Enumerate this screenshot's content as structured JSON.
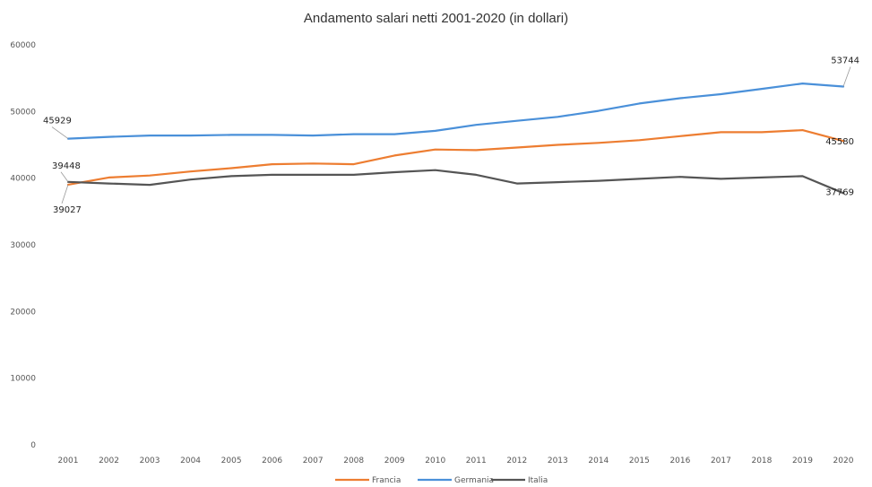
{
  "chart_data": {
    "type": "line",
    "title": "Andamento salari netti 2001-2020 (in dollari)",
    "xlabel": "",
    "ylabel": "",
    "ylim": [
      0,
      60000
    ],
    "yticks": [
      "0",
      "10000",
      "20000",
      "30000",
      "40000",
      "50000",
      "60000"
    ],
    "categories": [
      "2001",
      "2002",
      "2003",
      "2004",
      "2005",
      "2006",
      "2007",
      "2008",
      "2009",
      "2010",
      "2011",
      "2012",
      "2013",
      "2014",
      "2015",
      "2016",
      "2017",
      "2018",
      "2019",
      "2020"
    ],
    "grid": false,
    "legend_position": "bottom",
    "series": [
      {
        "name": "Francia",
        "color": "#ED7D31",
        "values": [
          39027,
          40100,
          40400,
          41000,
          41500,
          42100,
          42200,
          42100,
          43400,
          44300,
          44200,
          44600,
          45000,
          45300,
          45700,
          46300,
          46900,
          46900,
          47200,
          45580
        ]
      },
      {
        "name": "Germania",
        "color": "#4A90D9",
        "values": [
          45929,
          46200,
          46400,
          46400,
          46500,
          46500,
          46400,
          46600,
          46600,
          47100,
          48000,
          48600,
          49200,
          50100,
          51200,
          52000,
          52600,
          53400,
          54200,
          53744
        ]
      },
      {
        "name": "Italia",
        "color": "#555555",
        "values": [
          39448,
          39200,
          39000,
          39800,
          40300,
          40500,
          40500,
          40500,
          40900,
          41200,
          40500,
          39200,
          39400,
          39600,
          39900,
          40200,
          39900,
          40100,
          40300,
          37769
        ]
      }
    ],
    "data_labels": [
      {
        "series": 0,
        "index": 0,
        "text": "39027"
      },
      {
        "series": 0,
        "index": 19,
        "text": "45580"
      },
      {
        "series": 1,
        "index": 0,
        "text": "45929"
      },
      {
        "series": 1,
        "index": 19,
        "text": "53744"
      },
      {
        "series": 2,
        "index": 0,
        "text": "39448"
      },
      {
        "series": 2,
        "index": 19,
        "text": "37769"
      }
    ]
  }
}
